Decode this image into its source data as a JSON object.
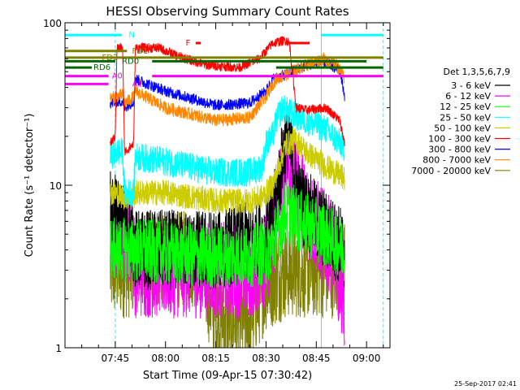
{
  "chart_data": {
    "type": "line",
    "title": "HESSI Observing Summary Count Rates",
    "xlabel": "Start Time (09-Apr-15 07:30:42)",
    "ylabel": "Count Rate (s⁻¹ detector⁻¹)",
    "yscale": "log",
    "ylim": [
      1,
      100
    ],
    "xlim_minutes_after_0730": [
      0,
      97
    ],
    "y_ticks": [
      "1",
      "10",
      "100"
    ],
    "x_ticks": [
      {
        "label": "07:45",
        "minute": 15
      },
      {
        "label": "08:00",
        "minute": 30
      },
      {
        "label": "08:15",
        "minute": 45
      },
      {
        "label": "08:30",
        "minute": 60
      },
      {
        "label": "08:45",
        "minute": 75
      },
      {
        "label": "09:00",
        "minute": 90
      }
    ],
    "legend": {
      "placement": "right",
      "title": "Det 1,3,5,6,7,9",
      "entries": [
        {
          "label": "3 - 6 keV",
          "color": "#000000"
        },
        {
          "label": "6 - 12 keV",
          "color": "#ff00ff"
        },
        {
          "label": "12 - 25 keV",
          "color": "#00ff00"
        },
        {
          "label": "25 - 50 keV",
          "color": "#00ffff"
        },
        {
          "label": "50 - 100 keV",
          "color": "#cccc00"
        },
        {
          "label": "100 - 300 keV",
          "color": "#ff0000"
        },
        {
          "label": "300 - 800 keV",
          "color": "#0000ff"
        },
        {
          "label": "800 - 7000 keV",
          "color": "#ff8800"
        },
        {
          "label": "7000 - 20000 keV",
          "color": "#808000"
        }
      ]
    },
    "series": [
      {
        "name": "100 - 300 keV",
        "color": "#ff0000",
        "noise": 0.03,
        "points": [
          [
            13.5,
            18
          ],
          [
            15,
            20
          ],
          [
            15.5,
            70
          ],
          [
            17.2,
            70
          ],
          [
            17.8,
            16
          ],
          [
            20.5,
            18
          ],
          [
            21,
            70
          ],
          [
            28,
            70
          ],
          [
            34,
            62
          ],
          [
            42,
            55
          ],
          [
            52,
            53
          ],
          [
            58,
            60
          ],
          [
            62,
            75
          ],
          [
            66,
            78
          ],
          [
            67,
            75
          ],
          [
            69,
            30
          ],
          [
            72,
            29
          ],
          [
            78,
            30
          ],
          [
            82,
            25
          ],
          [
            83.5,
            18
          ]
        ]
      },
      {
        "name": "800 - 7000 keV",
        "color": "#ff8800",
        "noise": 0.04,
        "points": [
          [
            13.5,
            34
          ],
          [
            15,
            35
          ],
          [
            17.2,
            36
          ],
          [
            17.8,
            32
          ],
          [
            20.5,
            35
          ],
          [
            21,
            38
          ],
          [
            30,
            30
          ],
          [
            45,
            25
          ],
          [
            55,
            26
          ],
          [
            60,
            35
          ],
          [
            62,
            42
          ],
          [
            63,
            45
          ],
          [
            66,
            48
          ],
          [
            72,
            55
          ],
          [
            77,
            60
          ],
          [
            81,
            55
          ],
          [
            83.5,
            45
          ]
        ]
      },
      {
        "name": "300 - 800 keV",
        "color": "#0000ff",
        "noise": 0.035,
        "points": [
          [
            13.5,
            32
          ],
          [
            17.2,
            33
          ],
          [
            17.8,
            30
          ],
          [
            20.5,
            33
          ],
          [
            21,
            45
          ],
          [
            30,
            38
          ],
          [
            45,
            31
          ],
          [
            55,
            32
          ],
          [
            60,
            38
          ],
          [
            62,
            45
          ],
          [
            66,
            48
          ],
          [
            72,
            55
          ],
          [
            77,
            57
          ],
          [
            82,
            52
          ],
          [
            83.5,
            35
          ]
        ]
      },
      {
        "name": "25 - 50 keV",
        "color": "#00ffff",
        "noise": 0.09,
        "points": [
          [
            13.5,
            15
          ],
          [
            15,
            16
          ],
          [
            17.2,
            16
          ],
          [
            17.8,
            9
          ],
          [
            20.5,
            9
          ],
          [
            21,
            15
          ],
          [
            30,
            14
          ],
          [
            45,
            12
          ],
          [
            55,
            12
          ],
          [
            59,
            13
          ],
          [
            60,
            18
          ],
          [
            62,
            20
          ],
          [
            63,
            25
          ],
          [
            65,
            30
          ],
          [
            67,
            28
          ],
          [
            70,
            26
          ],
          [
            74,
            24
          ],
          [
            78,
            22
          ],
          [
            83.5,
            17
          ]
        ]
      },
      {
        "name": "50 - 100 keV",
        "color": "#cccc00",
        "noise": 0.08,
        "points": [
          [
            13.5,
            9
          ],
          [
            15,
            9
          ],
          [
            17.2,
            8.5
          ],
          [
            20.5,
            8.5
          ],
          [
            21,
            9
          ],
          [
            30,
            9
          ],
          [
            45,
            8
          ],
          [
            55,
            8
          ],
          [
            59,
            8.5
          ],
          [
            62,
            10
          ],
          [
            66,
            18
          ],
          [
            69,
            19
          ],
          [
            72,
            16
          ],
          [
            78,
            13
          ],
          [
            83.5,
            11
          ]
        ]
      },
      {
        "name": "12 - 25 keV",
        "color": "#00ff00",
        "noise": 0.2,
        "points": [
          [
            13.5,
            4
          ],
          [
            20,
            4
          ],
          [
            21,
            4
          ],
          [
            45,
            3.6
          ],
          [
            60,
            3.8
          ],
          [
            62,
            4.5
          ],
          [
            66,
            7
          ],
          [
            70,
            6
          ],
          [
            78,
            5
          ],
          [
            83.5,
            4
          ]
        ]
      },
      {
        "name": "3 - 6 keV",
        "color": "#000000",
        "noise": 0.25,
        "points": [
          [
            13.5,
            7
          ],
          [
            17,
            6
          ],
          [
            20,
            5
          ],
          [
            21,
            4
          ],
          [
            30,
            4
          ],
          [
            45,
            4
          ],
          [
            55,
            4.5
          ],
          [
            60,
            5
          ],
          [
            62,
            6
          ],
          [
            66,
            20
          ],
          [
            67,
            18
          ],
          [
            70,
            8
          ],
          [
            75,
            6
          ],
          [
            83.5,
            4
          ]
        ]
      },
      {
        "name": "6 - 12 keV",
        "color": "#ff00ff",
        "noise": 0.3,
        "points": [
          [
            13.5,
            5
          ],
          [
            17,
            5
          ],
          [
            20,
            5
          ],
          [
            21,
            3
          ],
          [
            40,
            3
          ],
          [
            45,
            3
          ],
          [
            55,
            3
          ],
          [
            60,
            3.5
          ],
          [
            62,
            5
          ],
          [
            66,
            15
          ],
          [
            69,
            10
          ],
          [
            74,
            6
          ],
          [
            80,
            4
          ],
          [
            83.5,
            2
          ]
        ]
      },
      {
        "name": "7000 - 20000 keV",
        "color": "#808000",
        "noise": 0.3,
        "points": [
          [
            13.5,
            3
          ],
          [
            20,
            3
          ],
          [
            21,
            3.5
          ],
          [
            40,
            3.5
          ],
          [
            45,
            1.5
          ],
          [
            55,
            1.5
          ],
          [
            60,
            2.5
          ],
          [
            66,
            3
          ],
          [
            74,
            3
          ],
          [
            83.5,
            3
          ]
        ]
      }
    ],
    "annotations": [
      {
        "label": "N",
        "color": "#00ffff",
        "y": 84,
        "x_start": 0,
        "x_end": 17,
        "label_x": 19
      },
      {
        "label": "N",
        "color": "#00ffff",
        "y": 84,
        "x_start": 76.5,
        "x_end": 95,
        "label_x": null
      },
      {
        "label": "F",
        "color": "#ff0000",
        "y": 75,
        "x_start": 39,
        "x_end": 40.5,
        "label_x": 36
      },
      {
        "label": "F",
        "color": "#ff0000",
        "y": 75,
        "x_start": 66,
        "x_end": 73,
        "label_x": null
      },
      {
        "label": "FD1",
        "color": "#808000",
        "y": 67,
        "x_start": 0,
        "x_end": 18.5,
        "label_x": 20
      },
      {
        "label": "FD3",
        "color": "#808000",
        "y": 61,
        "x_start": 0,
        "x_end": 95,
        "label_x": 11
      },
      {
        "label": "RD0",
        "color": "#006600",
        "y": 58,
        "x_start": 0,
        "x_end": 15,
        "label_x": 17
      },
      {
        "label": "RD0",
        "color": "#006600",
        "y": 58,
        "x_start": 26,
        "x_end": 90,
        "label_x": null
      },
      {
        "label": "RD6",
        "color": "#006600",
        "y": 53,
        "x_start": 0,
        "x_end": 8,
        "label_x": 8.5
      },
      {
        "label": "RD6",
        "color": "#006600",
        "y": 53,
        "x_start": 63,
        "x_end": 95,
        "label_x": null
      },
      {
        "label": "A0",
        "color": "#ff00ff",
        "y": 47,
        "x_start": 0,
        "x_end": 13,
        "label_x": 14
      },
      {
        "label": "A0",
        "color": "#ff00ff",
        "y": 47,
        "x_start": 26,
        "x_end": 95,
        "label_x": null
      },
      {
        "label": "A1",
        "color": "#ff00ff",
        "y": 42,
        "x_start": 0,
        "x_end": 13,
        "label_x": 20
      }
    ],
    "vertical_markers": [
      {
        "minute": 15,
        "color": "#00ffff",
        "style": "dashed"
      },
      {
        "minute": 76.5,
        "color": "#00ffff",
        "style": "solid"
      },
      {
        "minute": 95,
        "color": "#00ffff",
        "style": "dashed"
      }
    ]
  },
  "footer_date": "25-Sep-2017 02:41"
}
